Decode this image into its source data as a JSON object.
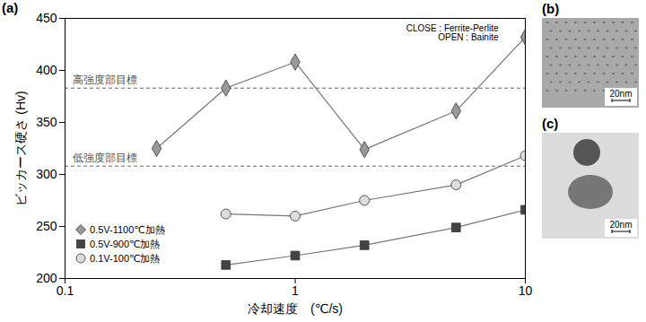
{
  "chart_data": {
    "type": "line",
    "panel_label": "(a)",
    "x_label": "冷却速度　(℃/s)",
    "y_label": "ビッカース硬さ (Hv)",
    "log": "x",
    "grid": false,
    "legend": "bottom-left",
    "xlim": [
      0.1,
      10
    ],
    "xticks": [
      0.1,
      1,
      10
    ],
    "ylim": [
      200,
      450
    ],
    "yticks": [
      200,
      250,
      300,
      350,
      400,
      450
    ],
    "series": [
      {
        "name": "0.5V-1100℃加熱",
        "color": "#999999",
        "marker": "diamond",
        "x": [
          0.25,
          0.5,
          1,
          2,
          5,
          10
        ],
        "values": [
          325,
          383,
          408,
          324,
          361,
          432
        ]
      },
      {
        "name": "0.5V-900℃加熱",
        "color": "#444444",
        "marker": "square",
        "x": [
          0.5,
          1,
          2,
          5,
          10
        ],
        "values": [
          213,
          222,
          232,
          249,
          266
        ]
      },
      {
        "name": "0.1V-100℃加熱",
        "color": "#dddddd",
        "marker": "circle",
        "x": [
          0.5,
          1,
          2,
          5,
          10
        ],
        "values": [
          262,
          260,
          275,
          290,
          318
        ]
      }
    ],
    "reference_lines": [
      {
        "value": 383,
        "label": "高強度部目標",
        "line_style": "dashed"
      },
      {
        "value": 308,
        "label": "低強度部目標",
        "line_style": "dashed"
      }
    ],
    "annotations": [
      "CLOSE : Ferrite-Perlite",
      "OPEN : Bainite"
    ]
  },
  "panels": [
    {
      "label": "(b)",
      "scale_bar": "20nm"
    },
    {
      "label": "(c)",
      "scale_bar": "20nm"
    }
  ]
}
